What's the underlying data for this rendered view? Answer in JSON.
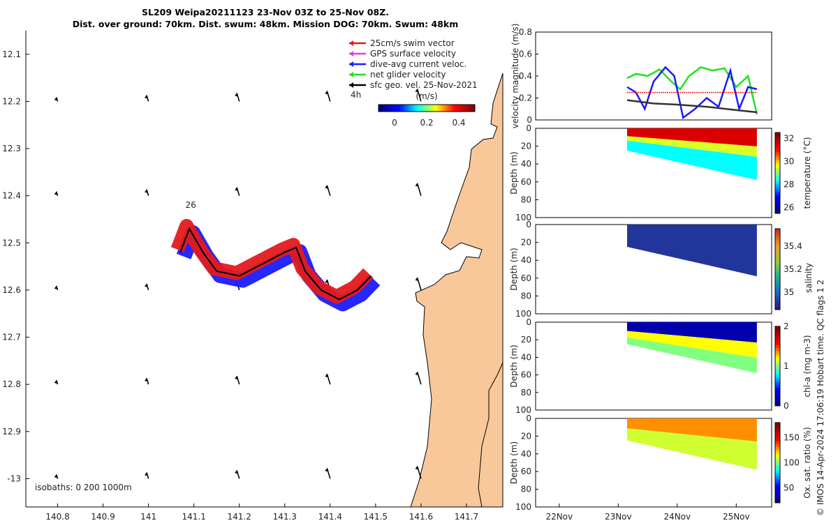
{
  "title_line1": "SL209 Weipa20211123 23-Nov 03Z to 25-Nov 08Z.",
  "title_line2": "Dist. over ground: 70km. Dist. swum: 48km. Mission DOG: 70km. Swum: 48km",
  "colors": {
    "land": "#f8c89a",
    "swim": "#e31a1c",
    "gps": "#e040e0",
    "dive": "#1a1aff",
    "net": "#22e022",
    "sfc": "#000000"
  },
  "chart_data": [
    {
      "type": "scatter",
      "name": "map",
      "x_ticks": [
        "140.8",
        "140.9",
        "141",
        "141.1",
        "141.2",
        "141.3",
        "141.4",
        "141.5",
        "141.6",
        "141.7"
      ],
      "y_ticks": [
        "12.1",
        "12.2",
        "12.3",
        "12.4",
        "12.5",
        "12.6",
        "12.7",
        "12.8",
        "12.9",
        "-13"
      ],
      "xlim": [
        140.73,
        141.78
      ],
      "ylim": [
        12.05,
        13.06
      ],
      "legend": [
        {
          "label": "25cm/s swim vector",
          "color": "#e31a1c"
        },
        {
          "label": "GPS surface velocity",
          "color": "#e040e0"
        },
        {
          "label": "dive-avg current veloc.",
          "color": "#1a1aff"
        },
        {
          "label": "net glider velocity",
          "color": "#22e022"
        },
        {
          "label": "sfc geo. vel. 25-Nov-2021",
          "color": "#000000"
        }
      ],
      "legend_position": "top-right",
      "colorbar": {
        "label": "(m/s)",
        "ticks": [
          "0",
          "0.2",
          "0.4"
        ],
        "range": [
          -0.1,
          0.5
        ]
      },
      "time_label": "4h",
      "track_label": "26",
      "isobaths_label": "isobaths: 0   200  1000m",
      "track": {
        "lon": [
          141.07,
          141.09,
          141.12,
          141.15,
          141.2,
          141.26,
          141.3,
          141.325,
          141.345,
          141.38,
          141.42,
          141.46,
          141.49
        ],
        "lat": [
          12.52,
          12.47,
          12.52,
          12.56,
          12.57,
          12.54,
          12.52,
          12.51,
          12.56,
          12.6,
          12.62,
          12.6,
          12.57
        ]
      }
    },
    {
      "type": "line",
      "name": "velocity",
      "ylabel": "velocity magnitude (m/s)",
      "ylim": [
        0,
        0.8
      ],
      "y_ticks": [
        "0",
        "0.2",
        "0.4",
        "0.6",
        "0.8"
      ],
      "xlim": [
        21.6,
        25.6
      ],
      "series": [
        {
          "color": "#22e022",
          "x": [
            23.15,
            23.3,
            23.5,
            23.7,
            23.9,
            24.05,
            24.2,
            24.4,
            24.6,
            24.8,
            25.0,
            25.2,
            25.35
          ],
          "y": [
            0.38,
            0.42,
            0.4,
            0.46,
            0.35,
            0.28,
            0.4,
            0.48,
            0.45,
            0.47,
            0.3,
            0.4,
            0.05
          ]
        },
        {
          "color": "#1a1aff",
          "x": [
            23.15,
            23.3,
            23.45,
            23.6,
            23.8,
            23.95,
            24.1,
            24.3,
            24.5,
            24.7,
            24.9,
            25.05,
            25.2,
            25.35
          ],
          "y": [
            0.3,
            0.25,
            0.1,
            0.35,
            0.48,
            0.4,
            0.02,
            0.1,
            0.2,
            0.12,
            0.45,
            0.1,
            0.3,
            0.28
          ]
        },
        {
          "color": "#e31a1c",
          "x": [
            23.15,
            25.35
          ],
          "y": [
            0.25,
            0.25
          ]
        },
        {
          "color": "#333333",
          "x": [
            23.15,
            23.6,
            24.0,
            24.5,
            25.0,
            25.35
          ],
          "y": [
            0.18,
            0.15,
            0.14,
            0.12,
            0.09,
            0.07
          ]
        }
      ]
    },
    {
      "type": "heatmap",
      "name": "temperature",
      "ylabel": "Depth (m)",
      "cbar_label": "temperature (°C)",
      "ylim": [
        0,
        100
      ],
      "y_ticks": [
        "0",
        "20",
        "40",
        "60",
        "80",
        "100"
      ],
      "cbar_ticks": [
        "32",
        "30",
        "28",
        "26"
      ],
      "crange": [
        25.5,
        32.5
      ],
      "x_ticks": [
        "22Nov",
        "23Nov",
        "24Nov",
        "25Nov"
      ],
      "xlim": [
        21.6,
        25.6
      ],
      "depth_bottom": [
        {
          "x": 23.15,
          "d": 25
        },
        {
          "x": 25.35,
          "d": 58
        }
      ],
      "layers": [
        {
          "top_frac": 0.0,
          "bot_frac": 0.35,
          "value": 31.5
        },
        {
          "top_frac": 0.35,
          "bot_frac": 0.55,
          "value": 29.5
        },
        {
          "top_frac": 0.55,
          "bot_frac": 1.0,
          "value": 28.3
        }
      ]
    },
    {
      "type": "heatmap",
      "name": "salinity",
      "ylabel": "Depth (m)",
      "cbar_label": "salinity",
      "ylim": [
        0,
        100
      ],
      "y_ticks": [
        "0",
        "20",
        "40",
        "60",
        "80",
        "100"
      ],
      "cbar_ticks": [
        "35.4",
        "35.2",
        "35"
      ],
      "crange": [
        34.85,
        35.55
      ],
      "x_ticks": [
        "22Nov",
        "23Nov",
        "24Nov",
        "25Nov"
      ],
      "xlim": [
        21.6,
        25.6
      ],
      "depth_bottom": [
        {
          "x": 23.15,
          "d": 25
        },
        {
          "x": 25.35,
          "d": 58
        }
      ],
      "layers": [
        {
          "top_frac": 0.0,
          "bot_frac": 1.0,
          "value": 34.9
        }
      ]
    },
    {
      "type": "heatmap",
      "name": "chl-a",
      "ylabel": "Depth (m)",
      "cbar_label": "chl-a (mg m-3)",
      "ylim": [
        0,
        100
      ],
      "y_ticks": [
        "0",
        "20",
        "40",
        "60",
        "80",
        "100"
      ],
      "cbar_ticks": [
        "2",
        "1",
        "0"
      ],
      "crange": [
        0,
        2
      ],
      "x_ticks": [
        "22Nov",
        "23Nov",
        "24Nov",
        "25Nov"
      ],
      "xlim": [
        21.6,
        25.6
      ],
      "depth_bottom": [
        {
          "x": 23.15,
          "d": 25
        },
        {
          "x": 25.35,
          "d": 58
        }
      ],
      "layers": [
        {
          "top_frac": 0.0,
          "bot_frac": 0.4,
          "value": 0.15
        },
        {
          "top_frac": 0.4,
          "bot_frac": 0.7,
          "value": 1.2
        },
        {
          "top_frac": 0.7,
          "bot_frac": 1.0,
          "value": 1.0
        }
      ]
    },
    {
      "type": "heatmap",
      "name": "oxygen",
      "ylabel": "Depth (m)",
      "cbar_label": "Ox. sat. ratio (%)",
      "ylim": [
        0,
        100
      ],
      "y_ticks": [
        "0",
        "20",
        "40",
        "60",
        "80",
        "100"
      ],
      "cbar_ticks": [
        "150",
        "100",
        "50"
      ],
      "crange": [
        20,
        180
      ],
      "x_ticks": [
        "22Nov",
        "23Nov",
        "24Nov",
        "25Nov"
      ],
      "xlim": [
        21.6,
        25.6
      ],
      "depth_bottom": [
        {
          "x": 23.15,
          "d": 25
        },
        {
          "x": 25.35,
          "d": 58
        }
      ],
      "layers": [
        {
          "top_frac": 0.0,
          "bot_frac": 0.45,
          "value": 130
        },
        {
          "top_frac": 0.45,
          "bot_frac": 1.0,
          "value": 110
        }
      ]
    }
  ],
  "footer_text": "© IMOS 14-Apr-2024 17:06:19 Hobart time. QC flags 1  2"
}
